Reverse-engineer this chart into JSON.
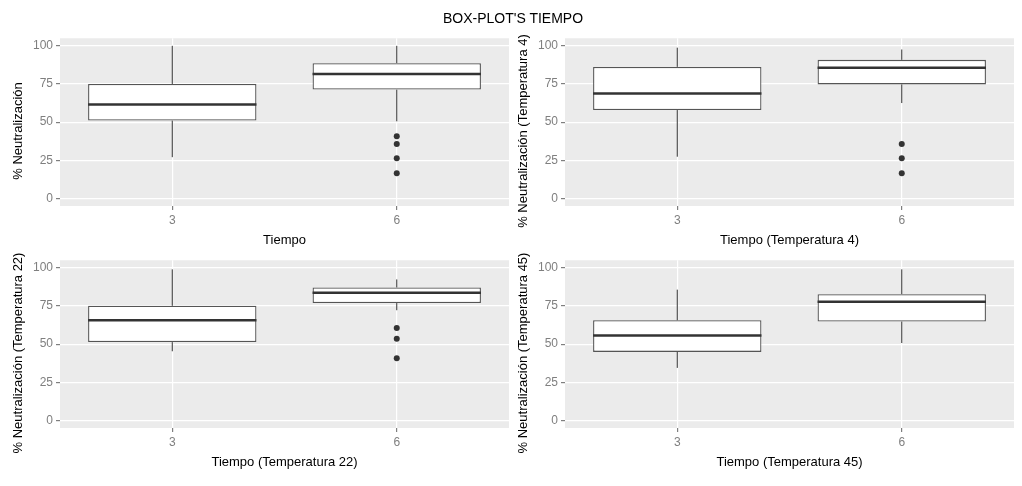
{
  "chart_data": [
    {
      "type": "box",
      "title": "BOX-PLOT'S TIEMPO",
      "categories": [
        "3",
        "6"
      ],
      "xlabel": "Tiempo",
      "ylabel": "% Neutralización",
      "ylim": [
        -5,
        105
      ],
      "yticks": [
        0,
        25,
        50,
        75,
        100
      ],
      "grid": true,
      "boxes": [
        {
          "low": 27,
          "q1": 51,
          "median": 61.5,
          "q3": 75,
          "high": 100
        },
        {
          "low": 50.5,
          "q1": 71.3,
          "median": 81.6,
          "q3": 88.6,
          "high": 100,
          "outliers": [
            40.7,
            35.7,
            26.3,
            16.4
          ]
        }
      ]
    },
    {
      "type": "box",
      "categories": [
        "3",
        "6"
      ],
      "xlabel": "Tiempo (Temperatura 4)",
      "ylabel": "% Neutralización (Temperatura 4)",
      "ylim": [
        -5,
        105
      ],
      "yticks": [
        0,
        25,
        50,
        75,
        100
      ],
      "grid": true,
      "boxes": [
        {
          "low": 27.3,
          "q1": 57.9,
          "median": 68.7,
          "q3": 86.2,
          "high": 98.8
        },
        {
          "low": 62.5,
          "q1": 74.7,
          "median": 85.6,
          "q3": 90.8,
          "high": 97.6,
          "outliers": [
            35.7,
            26.3,
            16.4
          ]
        }
      ]
    },
    {
      "type": "box",
      "categories": [
        "3",
        "6"
      ],
      "xlabel": "Tiempo (Temperatura 22)",
      "ylabel": "% Neutralización (Temperatura 22)",
      "ylim": [
        -5,
        105
      ],
      "yticks": [
        0,
        25,
        50,
        75,
        100
      ],
      "grid": true,
      "boxes": [
        {
          "low": 45.3,
          "q1": 51.3,
          "median": 65.6,
          "q3": 75.1,
          "high": 99
        },
        {
          "low": 72.2,
          "q1": 76.9,
          "median": 83.7,
          "q3": 87.1,
          "high": 92.4,
          "outliers": [
            60.6,
            53.5,
            40.8
          ]
        }
      ]
    },
    {
      "type": "box",
      "categories": [
        "3",
        "6"
      ],
      "xlabel": "Tiempo (Temperatura 45)",
      "ylabel": "% Neutralización (Temperatura 45)",
      "ylim": [
        -5,
        105
      ],
      "yticks": [
        0,
        25,
        50,
        75,
        100
      ],
      "grid": true,
      "boxes": [
        {
          "low": 34.4,
          "q1": 44.9,
          "median": 55.7,
          "q3": 65.6,
          "high": 85.7
        },
        {
          "low": 50.7,
          "q1": 64.8,
          "median": 77.7,
          "q3": 82.7,
          "high": 99
        }
      ]
    }
  ]
}
